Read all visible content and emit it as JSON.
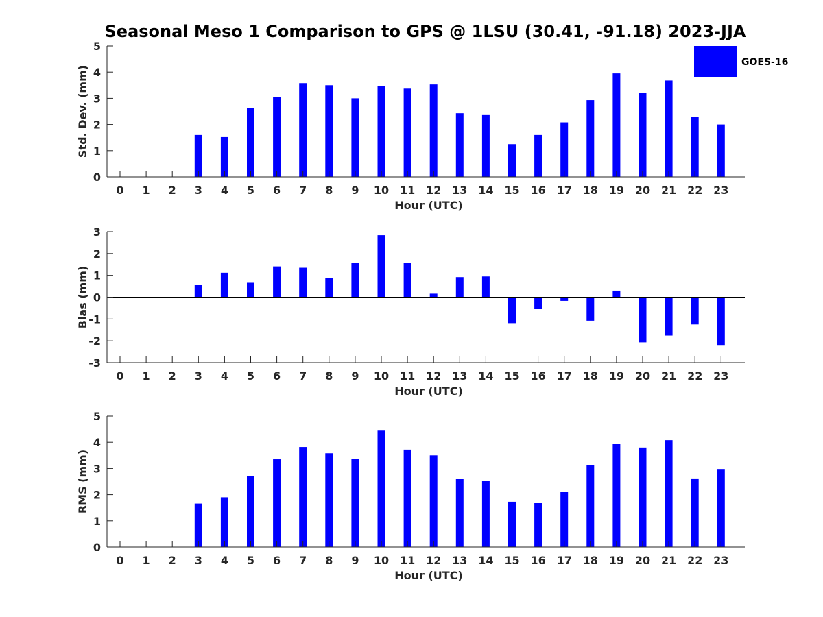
{
  "title": "Seasonal Meso 1 Comparison to GPS @ 1LSU (30.41, -91.18) 2023-JJA",
  "legend": {
    "label": "GOES-16",
    "color": "#0000ff"
  },
  "colors": {
    "bar": "#0000ff",
    "axis": "#262626",
    "title": "#000000"
  },
  "chart_data": [
    {
      "type": "bar",
      "title": "",
      "xlabel": "Hour (UTC)",
      "ylabel": "Std. Dev. (mm)",
      "categories": [
        "0",
        "1",
        "2",
        "3",
        "4",
        "5",
        "6",
        "7",
        "8",
        "9",
        "10",
        "11",
        "12",
        "13",
        "14",
        "15",
        "16",
        "17",
        "18",
        "19",
        "20",
        "21",
        "22",
        "23"
      ],
      "values": [
        0,
        0,
        0,
        1.6,
        1.52,
        2.62,
        3.05,
        3.58,
        3.5,
        3.0,
        3.47,
        3.37,
        3.53,
        2.43,
        2.36,
        1.25,
        1.6,
        2.08,
        2.93,
        3.95,
        3.2,
        3.68,
        2.3,
        2.0
      ],
      "ylim": [
        0,
        5
      ],
      "yticks": [
        "0",
        "1",
        "2",
        "3",
        "4",
        "5"
      ],
      "grid": false
    },
    {
      "type": "bar",
      "title": "",
      "xlabel": "Hour (UTC)",
      "ylabel": "Bias (mm)",
      "categories": [
        "0",
        "1",
        "2",
        "3",
        "4",
        "5",
        "6",
        "7",
        "8",
        "9",
        "10",
        "11",
        "12",
        "13",
        "14",
        "15",
        "16",
        "17",
        "18",
        "19",
        "20",
        "21",
        "22",
        "23"
      ],
      "values": [
        0,
        0,
        0,
        0.55,
        1.12,
        0.66,
        1.41,
        1.35,
        0.88,
        1.57,
        2.84,
        1.57,
        0.16,
        0.92,
        0.95,
        -1.19,
        -0.52,
        -0.17,
        -1.08,
        0.3,
        -2.07,
        -1.76,
        -1.25,
        -2.19
      ],
      "ylim": [
        -3,
        3
      ],
      "yticks": [
        "-3",
        "-2",
        "-1",
        "0",
        "1",
        "2",
        "3"
      ],
      "grid": false
    },
    {
      "type": "bar",
      "title": "",
      "xlabel": "Hour (UTC)",
      "ylabel": "RMS (mm)",
      "categories": [
        "0",
        "1",
        "2",
        "3",
        "4",
        "5",
        "6",
        "7",
        "8",
        "9",
        "10",
        "11",
        "12",
        "13",
        "14",
        "15",
        "16",
        "17",
        "18",
        "19",
        "20",
        "21",
        "22",
        "23"
      ],
      "values": [
        0,
        0,
        0,
        1.66,
        1.9,
        2.7,
        3.35,
        3.82,
        3.58,
        3.37,
        4.47,
        3.72,
        3.5,
        2.6,
        2.52,
        1.73,
        1.69,
        2.1,
        3.12,
        3.95,
        3.8,
        4.08,
        2.62,
        2.98
      ],
      "ylim": [
        0,
        5
      ],
      "yticks": [
        "0",
        "1",
        "2",
        "3",
        "4",
        "5"
      ],
      "grid": false
    }
  ]
}
